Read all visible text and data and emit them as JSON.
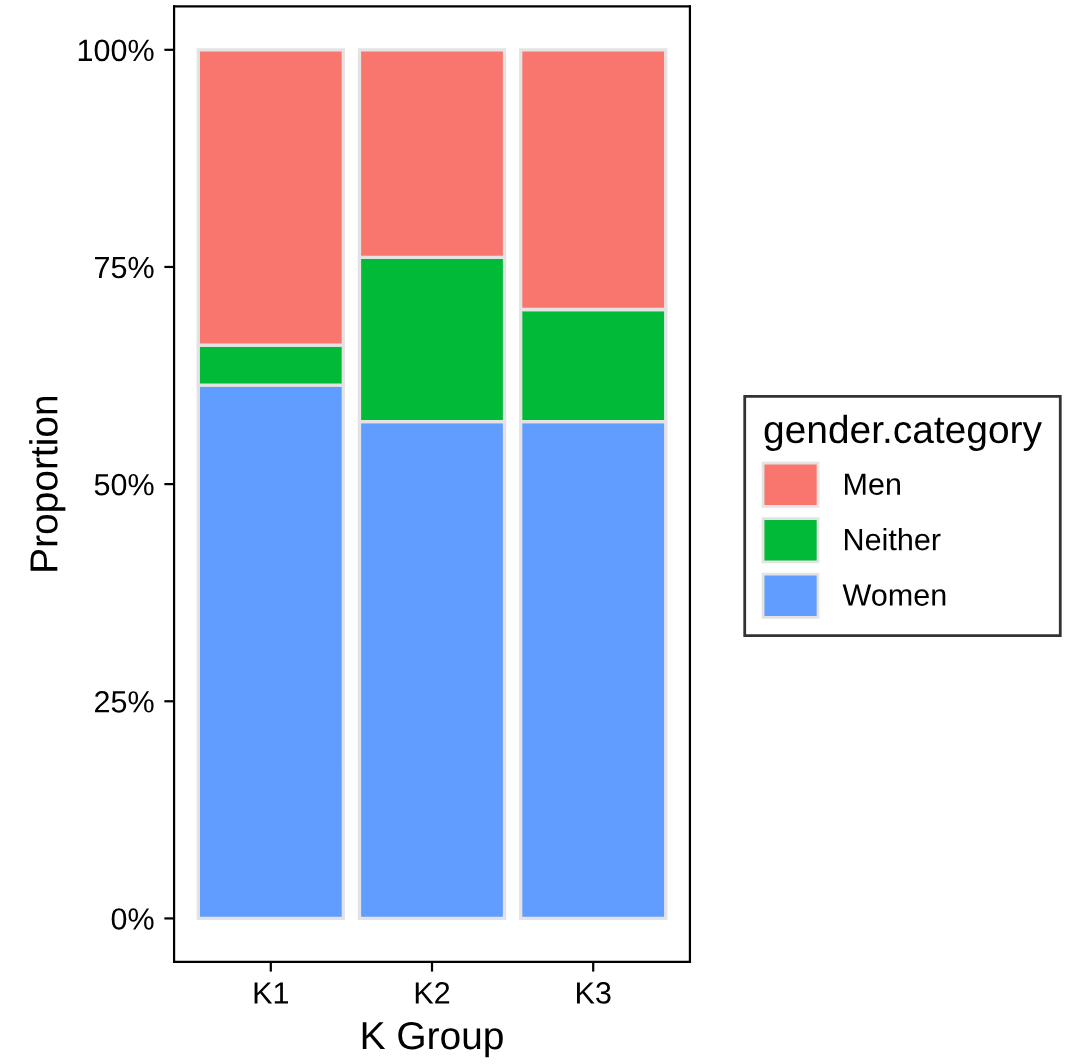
{
  "chart_data": {
    "type": "bar",
    "stacked": true,
    "xlabel": "K Group",
    "ylabel": "Proportion",
    "legend_title": "gender.category",
    "legend": "right",
    "categories": [
      "K1",
      "K2",
      "K3"
    ],
    "series": [
      {
        "name": "Women",
        "color": "#619cff",
        "values": [
          61.4,
          57.2,
          57.2
        ]
      },
      {
        "name": "Neither",
        "color": "#00ba38",
        "values": [
          4.6,
          18.9,
          12.9
        ]
      },
      {
        "name": "Men",
        "color": "#f8766d",
        "values": [
          34.0,
          23.9,
          29.9
        ]
      }
    ],
    "ylim": [
      -5,
      105
    ],
    "yticks": [
      {
        "value": 0,
        "label": "0%"
      },
      {
        "value": 25,
        "label": "25%"
      },
      {
        "value": 50,
        "label": "50%"
      },
      {
        "value": 75,
        "label": "75%"
      },
      {
        "value": 100,
        "label": "100%"
      }
    ],
    "grid": false
  }
}
